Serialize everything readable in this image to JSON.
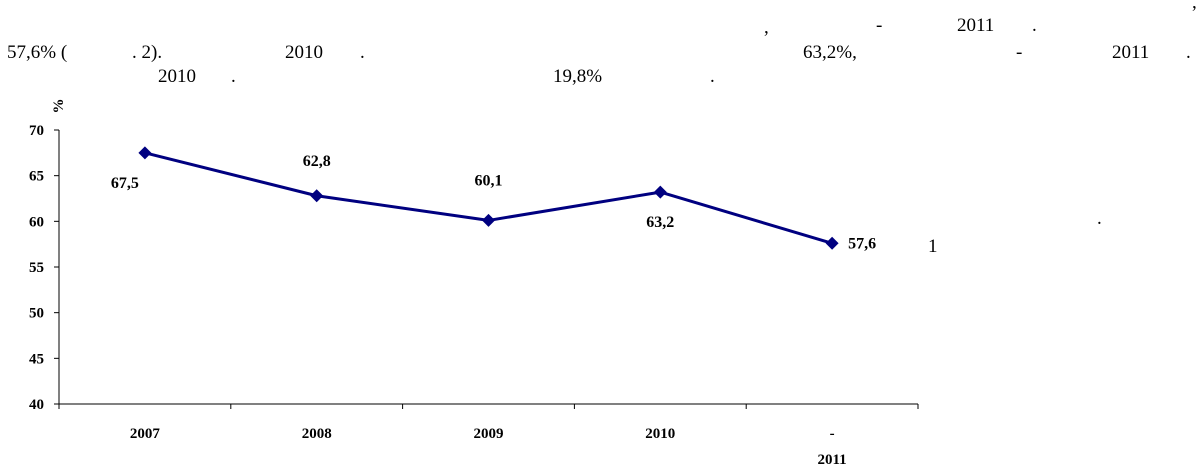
{
  "text_fragments": {
    "line1_comma": ",",
    "line1_dash": "-",
    "line1_year": "2011",
    "line1_dot": ".",
    "line1_corner": ",",
    "line2_share": "57,6% (",
    "line2_ref": ". 2).",
    "line2_year": "2010",
    "line2_dot": ".",
    "line2_value": "63,2%,",
    "line2_dash": "-",
    "line2_year2": "2011",
    "line2_dot2": ".",
    "line3_year": "2010",
    "line3_dot": ".",
    "line3_value": "19,8%",
    "line3_dot2": ".",
    "side_dot": ".",
    "side_number": "1"
  },
  "chart_data": {
    "type": "line",
    "title": "",
    "xlabel": "",
    "ylabel": "%",
    "categories": [
      [
        "2007"
      ],
      [
        "2008"
      ],
      [
        "2009"
      ],
      [
        "2010"
      ],
      [
        "-",
        "2011"
      ]
    ],
    "series": [
      {
        "values": [
          67.5,
          62.8,
          60.1,
          63.2,
          57.6
        ],
        "labels": [
          "67,5",
          "62,8",
          "60,1",
          "63,2",
          "57,6"
        ],
        "color": "#000080"
      }
    ],
    "y_ticks": [
      40,
      45,
      50,
      55,
      60,
      65,
      70
    ],
    "ylim": [
      40,
      70
    ],
    "grid": false,
    "legend": "none"
  }
}
